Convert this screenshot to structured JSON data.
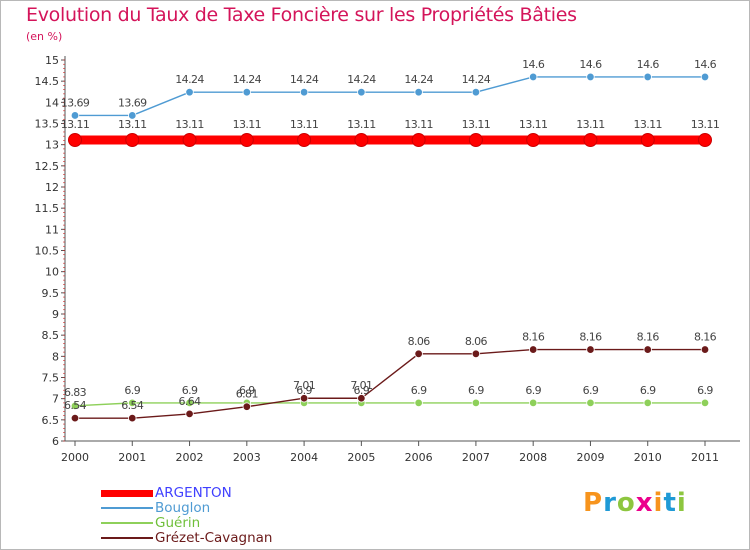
{
  "title": "Evolution du Taux de Taxe Foncière sur les Propriétés Bâties",
  "unit_label": "(en %)",
  "logo": {
    "letters": [
      "P",
      "r",
      "o",
      "x",
      "i",
      "t",
      "i"
    ],
    "colors": [
      "#f7941d",
      "#1f9ad6",
      "#8dc63f",
      "#ec008c",
      "#f7941d",
      "#1f9ad6",
      "#8dc63f"
    ]
  },
  "chart_data": {
    "type": "line",
    "x": [
      "2000",
      "2001",
      "2002",
      "2003",
      "2004",
      "2005",
      "2006",
      "2007",
      "2008",
      "2009",
      "2010",
      "2011"
    ],
    "ylim": [
      6,
      15
    ],
    "yticks": [
      "6",
      "6.5",
      "7",
      "7.5",
      "8",
      "8.5",
      "9",
      "9.5",
      "10",
      "10.5",
      "11",
      "11.5",
      "12",
      "12.5",
      "13",
      "13.5",
      "14",
      "14.5",
      "15"
    ],
    "grid": false,
    "legend_position": "bottom-left",
    "series": [
      {
        "name": "ARGENTON",
        "color": "#ff0000",
        "values": [
          13.11,
          13.11,
          13.11,
          13.11,
          13.11,
          13.11,
          13.11,
          13.11,
          13.11,
          13.11,
          13.11,
          13.11
        ],
        "labels": [
          "13.11",
          "13.11",
          "13.11",
          "13.11",
          "13.11",
          "13.11",
          "13.11",
          "13.11",
          "13.11",
          "13.11",
          "13.11",
          "13.11"
        ]
      },
      {
        "name": "Bouglon",
        "color": "#4f9bd3",
        "values": [
          13.69,
          13.69,
          14.24,
          14.24,
          14.24,
          14.24,
          14.24,
          14.24,
          14.6,
          14.6,
          14.6,
          14.6
        ],
        "labels": [
          "13.69",
          "13.69",
          "14.24",
          "14.24",
          "14.24",
          "14.24",
          "14.24",
          "14.24",
          "14.6",
          "14.6",
          "14.6",
          "14.6"
        ]
      },
      {
        "name": "Guérin",
        "color": "#8ed05a",
        "values": [
          6.83,
          6.9,
          6.9,
          6.9,
          6.9,
          6.9,
          6.9,
          6.9,
          6.9,
          6.9,
          6.9,
          6.9
        ],
        "labels": [
          "6.83",
          "6.9",
          "6.9",
          "6.9",
          "6.9",
          "6.9",
          "6.9",
          "6.9",
          "6.9",
          "6.9",
          "6.9",
          "6.9"
        ]
      },
      {
        "name": "Grézet-Cavagnan",
        "color": "#6b1a1a",
        "values": [
          6.54,
          6.54,
          6.64,
          6.81,
          7.01,
          7.01,
          8.06,
          8.06,
          8.16,
          8.16,
          8.16,
          8.16
        ],
        "labels": [
          "6.54",
          "6.54",
          "6.64",
          "6.81",
          "7.01",
          "7.01",
          "8.06",
          "8.06",
          "8.16",
          "8.16",
          "8.16",
          "8.16"
        ]
      }
    ]
  }
}
